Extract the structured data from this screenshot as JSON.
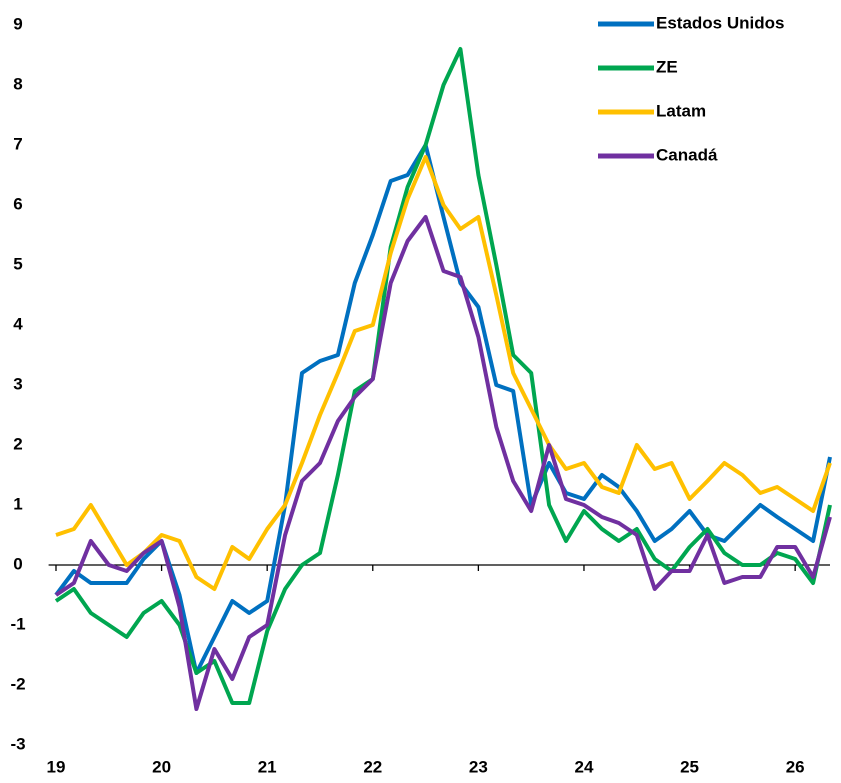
{
  "chart_data": {
    "type": "line",
    "x": [
      19,
      19.17,
      19.33,
      19.5,
      19.67,
      19.83,
      20,
      20.17,
      20.33,
      20.5,
      20.67,
      20.83,
      21,
      21.17,
      21.33,
      21.5,
      21.67,
      21.83,
      22,
      22.17,
      22.33,
      22.5,
      22.67,
      22.83,
      23,
      23.17,
      23.33,
      23.5,
      23.67,
      23.83,
      24,
      24.17,
      24.33,
      24.5,
      24.67,
      24.83,
      25,
      25.17,
      25.33,
      25.5,
      25.67,
      25.83,
      26,
      26.17,
      26.33
    ],
    "series": [
      {
        "name": "Estados Unidos",
        "color": "#0070c0",
        "values": [
          -0.5,
          -0.1,
          -0.3,
          -0.3,
          -0.3,
          0.1,
          0.4,
          -0.5,
          -1.8,
          -1.2,
          -0.6,
          -0.8,
          -0.6,
          1.0,
          3.2,
          3.4,
          3.5,
          4.7,
          5.5,
          6.4,
          6.5,
          7.0,
          5.8,
          4.7,
          4.3,
          3.0,
          2.9,
          1.0,
          1.7,
          1.2,
          1.1,
          1.5,
          1.3,
          0.9,
          0.4,
          0.6,
          0.9,
          0.5,
          0.4,
          0.7,
          1.0,
          0.8,
          0.6,
          0.4,
          1.8
        ]
      },
      {
        "name": "ZE",
        "color": "#00a650",
        "values": [
          -0.6,
          -0.4,
          -0.8,
          -1.0,
          -1.2,
          -0.8,
          -0.6,
          -1.0,
          -1.8,
          -1.6,
          -2.3,
          -2.3,
          -1.1,
          -0.4,
          0.0,
          0.2,
          1.5,
          2.9,
          3.1,
          5.3,
          6.3,
          7.0,
          8.0,
          8.6,
          6.5,
          5.0,
          3.5,
          3.2,
          1.0,
          0.4,
          0.9,
          0.6,
          0.4,
          0.6,
          0.1,
          -0.1,
          0.3,
          0.6,
          0.2,
          0.0,
          0.0,
          0.2,
          0.1,
          -0.3,
          1.0
        ]
      },
      {
        "name": "Latam",
        "color": "#ffc000",
        "values": [
          0.5,
          0.6,
          1.0,
          0.5,
          0.0,
          0.2,
          0.5,
          0.4,
          -0.2,
          -0.4,
          0.3,
          0.1,
          0.6,
          1.0,
          1.7,
          2.5,
          3.2,
          3.9,
          4.0,
          5.2,
          6.1,
          6.8,
          6.0,
          5.6,
          5.8,
          4.5,
          3.2,
          2.6,
          2.0,
          1.6,
          1.7,
          1.3,
          1.2,
          2.0,
          1.6,
          1.7,
          1.1,
          1.4,
          1.7,
          1.5,
          1.2,
          1.3,
          1.1,
          0.9,
          1.7
        ]
      },
      {
        "name": "Canadá",
        "color": "#7030a0",
        "values": [
          -0.5,
          -0.3,
          0.4,
          0.0,
          -0.1,
          0.2,
          0.4,
          -0.7,
          -2.4,
          -1.4,
          -1.9,
          -1.2,
          -1.0,
          0.5,
          1.4,
          1.7,
          2.4,
          2.8,
          3.1,
          4.7,
          5.4,
          5.8,
          4.9,
          4.8,
          3.8,
          2.3,
          1.4,
          0.9,
          2.0,
          1.1,
          1.0,
          0.8,
          0.7,
          0.5,
          -0.4,
          -0.1,
          -0.1,
          0.5,
          -0.3,
          -0.2,
          -0.2,
          0.3,
          0.3,
          -0.2,
          0.8
        ]
      }
    ],
    "xlim": [
      18.93,
      26.33
    ],
    "xticks": [
      19,
      20,
      21,
      22,
      23,
      24,
      25,
      26
    ],
    "ylim": [
      -3,
      9
    ],
    "yticks": [
      -3,
      -2,
      -1,
      0,
      1,
      2,
      3,
      4,
      5,
      6,
      7,
      8,
      9
    ],
    "legend": "upper right"
  }
}
